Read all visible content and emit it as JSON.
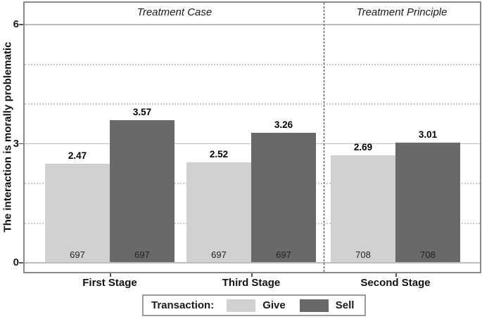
{
  "chart_data": {
    "type": "bar",
    "title": "",
    "ylabel": "The interaction is morally problematic",
    "xlabel": "",
    "ylim": [
      0,
      6
    ],
    "yticks": [
      0,
      3,
      6
    ],
    "minor_gridlines": [
      1,
      2,
      4,
      5
    ],
    "grid": "solid horizontal lines at 0, 3, 6; dotted horizontal lines at 1, 2, 4, 5",
    "legend_position": "bottom-center boxed",
    "legend_title": "Transaction:",
    "categories": [
      "First Stage",
      "Third Stage",
      "Second Stage"
    ],
    "panels": [
      {
        "label": "Treatment Case",
        "categories": [
          "First Stage",
          "Third Stage"
        ]
      },
      {
        "label": "Treatment Principle",
        "categories": [
          "Second Stage"
        ]
      }
    ],
    "separator_note": "vertical black dashed line divides Treatment Case panel from Treatment Principle panel",
    "series": [
      {
        "name": "Give",
        "color": "#d1d1d1",
        "values": [
          2.47,
          2.52,
          2.69
        ],
        "bar_n_labels": [
          "697",
          "697",
          "708"
        ]
      },
      {
        "name": "Sell",
        "color": "#696969",
        "values": [
          3.57,
          3.26,
          3.01
        ],
        "bar_n_labels": [
          "697",
          "697",
          "708"
        ]
      }
    ],
    "value_labels": [
      "2.47",
      "3.57",
      "2.52",
      "3.26",
      "2.69",
      "3.01"
    ]
  },
  "colors": {
    "give_bar": "#d1d1d1",
    "sell_bar": "#696969",
    "plot_border": "#8a8a8a",
    "major_gridline": "#bdbdbd",
    "minor_gridline": "#c9c9c9",
    "dashed_separator": "#3b3b3b",
    "background": "#ffffff"
  }
}
